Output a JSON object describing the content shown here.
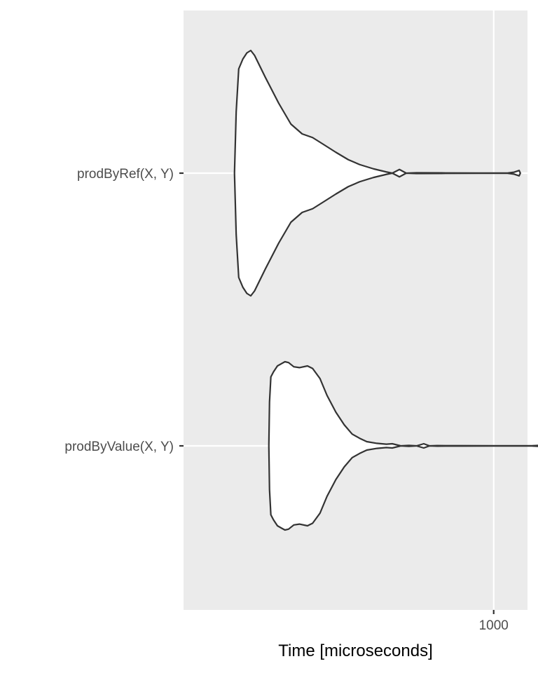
{
  "chart_data": {
    "type": "violin",
    "orientation": "horizontal",
    "xlabel": "Time [microseconds]",
    "x_ticks": [
      1000
    ],
    "x_tick_labels": [
      "1000"
    ],
    "xlim": [
      120,
      1260
    ],
    "grid": true,
    "legend": "none",
    "colors": {
      "panel": "#ebebeb",
      "grid": "#ffffff",
      "outline": "#333333",
      "fill": "#ffffff",
      "tick_text": "#4d4d4d"
    },
    "categories": [
      "prodByRef(X, Y)",
      "prodByValue(X, Y)"
    ],
    "series": [
      {
        "label": "prodByRef(X, Y)",
        "density": [
          [
            170,
            0.0
          ],
          [
            172,
            0.5
          ],
          [
            175,
            0.85
          ],
          [
            180,
            0.93
          ],
          [
            185,
            0.98
          ],
          [
            190,
            1.0
          ],
          [
            195,
            0.96
          ],
          [
            210,
            0.78
          ],
          [
            230,
            0.57
          ],
          [
            250,
            0.4
          ],
          [
            270,
            0.32
          ],
          [
            290,
            0.29
          ],
          [
            310,
            0.24
          ],
          [
            340,
            0.17
          ],
          [
            370,
            0.11
          ],
          [
            400,
            0.07
          ],
          [
            440,
            0.035
          ],
          [
            480,
            0.01
          ],
          [
            500,
            0.0
          ],
          [
            525,
            0.03
          ],
          [
            550,
            0.0
          ],
          [
            590,
            0.003
          ],
          [
            700,
            0.002
          ],
          [
            900,
            0.001
          ],
          [
            1100,
            0.001
          ],
          [
            1150,
            0.008
          ],
          [
            1190,
            0.022
          ],
          [
            1200,
            0.0
          ]
        ]
      },
      {
        "label": "prodByValue(X, Y)",
        "density": [
          [
            215,
            0.0
          ],
          [
            216,
            0.52
          ],
          [
            218,
            0.82
          ],
          [
            222,
            0.88
          ],
          [
            228,
            0.95
          ],
          [
            235,
            0.98
          ],
          [
            240,
            1.0
          ],
          [
            246,
            0.99
          ],
          [
            255,
            0.94
          ],
          [
            265,
            0.93
          ],
          [
            280,
            0.95
          ],
          [
            290,
            0.92
          ],
          [
            305,
            0.8
          ],
          [
            320,
            0.6
          ],
          [
            340,
            0.4
          ],
          [
            360,
            0.25
          ],
          [
            380,
            0.14
          ],
          [
            400,
            0.09
          ],
          [
            420,
            0.05
          ],
          [
            450,
            0.03
          ],
          [
            480,
            0.02
          ],
          [
            500,
            0.025
          ],
          [
            530,
            0.0
          ],
          [
            560,
            0.005
          ],
          [
            590,
            0.0
          ],
          [
            620,
            0.025
          ],
          [
            645,
            0.0
          ],
          [
            680,
            0.003
          ],
          [
            800,
            0.002
          ],
          [
            1000,
            0.001
          ],
          [
            1300,
            0.001
          ],
          [
            1380,
            0.008
          ],
          [
            1420,
            0.022
          ],
          [
            1430,
            0.0
          ]
        ]
      }
    ]
  }
}
